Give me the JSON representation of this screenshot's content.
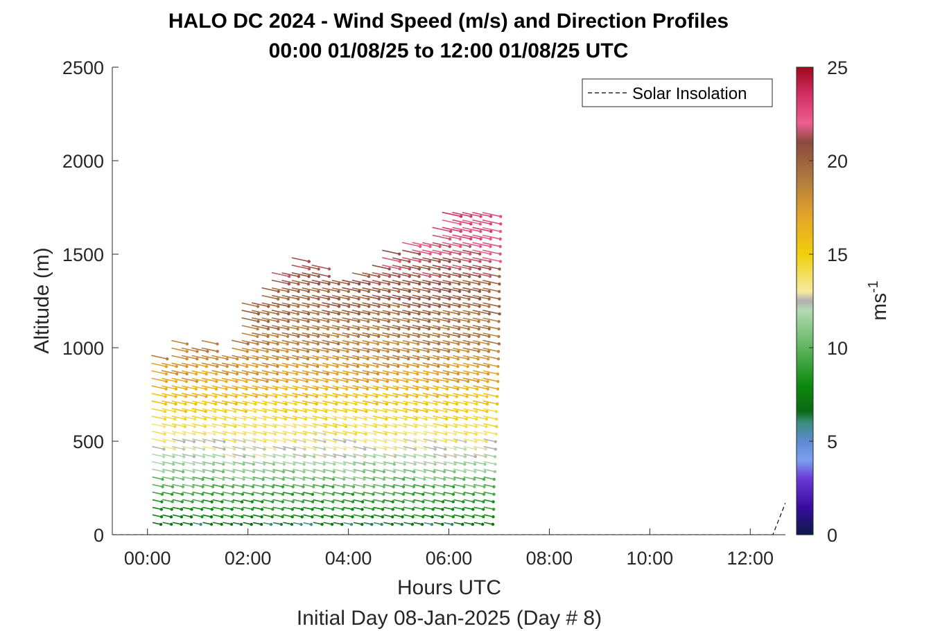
{
  "chart_data": {
    "type": "scatter",
    "subtype": "wind-barb-vector-profile",
    "title": "HALO DC 2024 - Wind Speed (m/s) and Direction Profiles",
    "subtitle": "00:00 01/08/25 to 12:00 01/08/25  UTC",
    "xlabel": "Hours UTC",
    "xlabel2": "Initial Day 08-Jan-2025 (Day # 8)",
    "ylabel": "Altitude (m)",
    "xlim": [
      -0.7,
      12.7
    ],
    "ylim": [
      0,
      2500
    ],
    "x_ticks": [
      0,
      2,
      4,
      6,
      8,
      10,
      12
    ],
    "x_tick_labels": [
      "00:00",
      "02:00",
      "04:00",
      "06:00",
      "08:00",
      "10:00",
      "12:00"
    ],
    "y_ticks": [
      0,
      500,
      1000,
      1500,
      2000,
      2500
    ],
    "y_tick_labels": [
      "0",
      "500",
      "1000",
      "1500",
      "2000",
      "2500"
    ],
    "colorbar": {
      "label": "ms-1",
      "label_base": "ms",
      "label_exp": "-1",
      "range": [
        0,
        25
      ],
      "ticks": [
        0,
        5,
        10,
        15,
        20,
        25
      ],
      "tick_labels": [
        "0",
        "5",
        "10",
        "15",
        "20",
        "25"
      ],
      "stops": [
        {
          "v": 0,
          "c": "#0b1a4a"
        },
        {
          "v": 1.5,
          "c": "#3a0c9e"
        },
        {
          "v": 3,
          "c": "#6a3bd6"
        },
        {
          "v": 4,
          "c": "#7aa0f0"
        },
        {
          "v": 5,
          "c": "#5e8ad0"
        },
        {
          "v": 6,
          "c": "#3a8e7e"
        },
        {
          "v": 6.6,
          "c": "#0a6a14"
        },
        {
          "v": 8,
          "c": "#0c8a0c"
        },
        {
          "v": 10,
          "c": "#5fb45f"
        },
        {
          "v": 12,
          "c": "#b2dab2"
        },
        {
          "v": 12.5,
          "c": "#b0b0b0"
        },
        {
          "v": 13,
          "c": "#f4eaa0"
        },
        {
          "v": 15,
          "c": "#f0cf0a"
        },
        {
          "v": 17,
          "c": "#e5a52a"
        },
        {
          "v": 19,
          "c": "#b07a3e"
        },
        {
          "v": 21,
          "c": "#8a4a3e"
        },
        {
          "v": 22,
          "c": "#ed5e90"
        },
        {
          "v": 23.5,
          "c": "#d23065"
        },
        {
          "v": 25,
          "c": "#a00a1e"
        }
      ]
    },
    "legend": {
      "location": "top-right",
      "entries": [
        "Solar Insolation"
      ]
    },
    "solar_insolation": {
      "x": [
        -0.7,
        12.45,
        12.7
      ],
      "y": [
        0,
        0,
        170
      ]
    },
    "profiles": {
      "time_start": 0.13,
      "time_step": 0.2,
      "top_altitudes": [
        930,
        890,
        1030,
        1000,
        990,
        1025,
        950,
        960,
        1040,
        1220,
        1210,
        1300,
        1390,
        1380,
        1450,
        1440,
        1420,
        1350,
        1340,
        1330,
        1380,
        1380,
        1440,
        1500,
        1480,
        1530,
        1530,
        1540,
        1640,
        1700,
        1690,
        1690,
        1690,
        1690
      ],
      "altitude_step": 40,
      "lowest_altitude": 50,
      "speed_by_altitude": [
        {
          "alt": 0,
          "speed": 5.0
        },
        {
          "alt": 80,
          "speed": 7.5
        },
        {
          "alt": 200,
          "speed": 9.0
        },
        {
          "alt": 330,
          "speed": 11.0
        },
        {
          "alt": 450,
          "speed": 12.8
        },
        {
          "alt": 620,
          "speed": 14.5
        },
        {
          "alt": 800,
          "speed": 17.0
        },
        {
          "alt": 1000,
          "speed": 18.8
        },
        {
          "alt": 1200,
          "speed": 20.0
        },
        {
          "alt": 1400,
          "speed": 21.0
        },
        {
          "alt": 1600,
          "speed": 22.5
        },
        {
          "alt": 1700,
          "speed": 23.0
        }
      ],
      "direction_deg_from": 300
    }
  }
}
